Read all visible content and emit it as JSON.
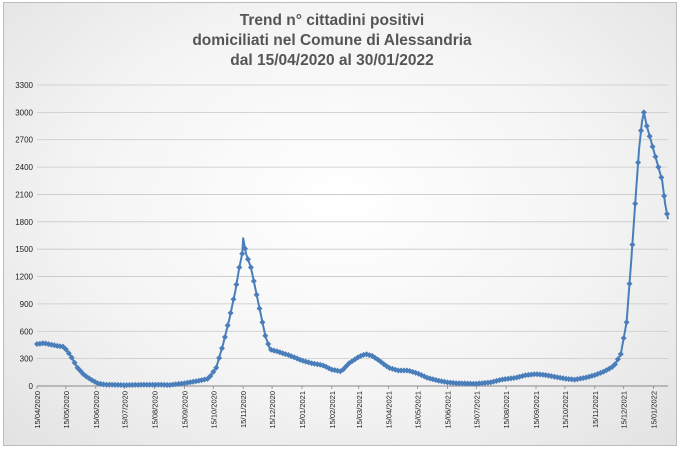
{
  "chart_data": {
    "type": "line",
    "title": [
      "Trend n° cittadini positivi",
      "domiciliati nel Comune di Alessandria",
      "dal 15/04/2020 al 30/01/2022"
    ],
    "xlabel": "",
    "ylabel": "",
    "ylim": [
      0,
      3300
    ],
    "yticks": [
      "0",
      "300",
      "600",
      "900",
      "1200",
      "1500",
      "1800",
      "2100",
      "2400",
      "2700",
      "3000",
      "3300"
    ],
    "xticks": [
      "15/04/2020",
      "15/05/2020",
      "15/06/2020",
      "15/07/2020",
      "15/08/2020",
      "15/09/2020",
      "15/10/2020",
      "15/11/2020",
      "15/12/2020",
      "15/01/2021",
      "15/02/2021",
      "15/03/2021",
      "15/04/2021",
      "15/05/2021",
      "15/06/2021",
      "15/07/2021",
      "15/08/2021",
      "15/09/2021",
      "15/10/2021",
      "15/11/2021",
      "15/12/2021",
      "15/01/2022"
    ],
    "grid": true,
    "legend": "none",
    "line_color": "#4a7ebb",
    "series": [
      {
        "points": [
          [
            "2020-04-15",
            460
          ],
          [
            "2020-04-22",
            470
          ],
          [
            "2020-04-29",
            455
          ],
          [
            "2020-05-06",
            440
          ],
          [
            "2020-05-13",
            430
          ],
          [
            "2020-05-20",
            330
          ],
          [
            "2020-05-27",
            200
          ],
          [
            "2020-06-03",
            120
          ],
          [
            "2020-06-10",
            70
          ],
          [
            "2020-06-17",
            30
          ],
          [
            "2020-06-24",
            15
          ],
          [
            "2020-07-15",
            10
          ],
          [
            "2020-08-15",
            15
          ],
          [
            "2020-08-30",
            10
          ],
          [
            "2020-09-15",
            30
          ],
          [
            "2020-10-01",
            60
          ],
          [
            "2020-10-10",
            80
          ],
          [
            "2020-10-18",
            200
          ],
          [
            "2020-10-25",
            450
          ],
          [
            "2020-11-01",
            750
          ],
          [
            "2020-11-07",
            1050
          ],
          [
            "2020-11-11",
            1300
          ],
          [
            "2020-11-14",
            1450
          ],
          [
            "2020-11-15",
            1620
          ],
          [
            "2020-11-18",
            1450
          ],
          [
            "2020-11-23",
            1300
          ],
          [
            "2020-11-28",
            1050
          ],
          [
            "2020-12-03",
            800
          ],
          [
            "2020-12-08",
            550
          ],
          [
            "2020-12-13",
            400
          ],
          [
            "2020-12-20",
            380
          ],
          [
            "2021-01-01",
            340
          ],
          [
            "2021-01-15",
            280
          ],
          [
            "2021-01-25",
            250
          ],
          [
            "2021-02-05",
            230
          ],
          [
            "2021-02-15",
            180
          ],
          [
            "2021-02-25",
            160
          ],
          [
            "2021-03-05",
            250
          ],
          [
            "2021-03-15",
            320
          ],
          [
            "2021-03-22",
            350
          ],
          [
            "2021-03-29",
            330
          ],
          [
            "2021-04-05",
            280
          ],
          [
            "2021-04-15",
            200
          ],
          [
            "2021-04-25",
            170
          ],
          [
            "2021-05-05",
            170
          ],
          [
            "2021-05-15",
            140
          ],
          [
            "2021-05-25",
            90
          ],
          [
            "2021-06-05",
            60
          ],
          [
            "2021-06-15",
            40
          ],
          [
            "2021-06-25",
            30
          ],
          [
            "2021-07-15",
            25
          ],
          [
            "2021-07-30",
            40
          ],
          [
            "2021-08-10",
            70
          ],
          [
            "2021-08-25",
            90
          ],
          [
            "2021-09-05",
            120
          ],
          [
            "2021-09-15",
            130
          ],
          [
            "2021-09-25",
            120
          ],
          [
            "2021-10-05",
            100
          ],
          [
            "2021-10-15",
            80
          ],
          [
            "2021-10-25",
            70
          ],
          [
            "2021-11-05",
            90
          ],
          [
            "2021-11-15",
            120
          ],
          [
            "2021-11-25",
            160
          ],
          [
            "2021-12-05",
            220
          ],
          [
            "2021-12-12",
            350
          ],
          [
            "2021-12-18",
            700
          ],
          [
            "2021-12-23",
            1400
          ],
          [
            "2021-12-27",
            2000
          ],
          [
            "2021-12-31",
            2600
          ],
          [
            "2022-01-03",
            2900
          ],
          [
            "2022-01-05",
            3000
          ],
          [
            "2022-01-08",
            2850
          ],
          [
            "2022-01-12",
            2700
          ],
          [
            "2022-01-16",
            2550
          ],
          [
            "2022-01-20",
            2400
          ],
          [
            "2022-01-24",
            2250
          ],
          [
            "2022-01-27",
            2000
          ],
          [
            "2022-01-30",
            1830
          ]
        ]
      }
    ]
  }
}
